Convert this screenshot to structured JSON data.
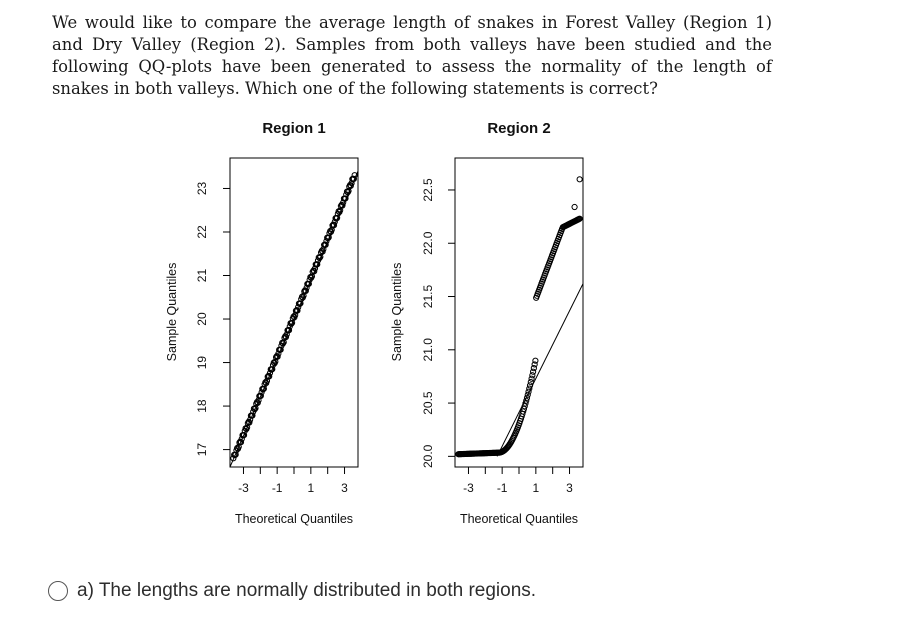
{
  "question": {
    "text": "We would like to compare the average length of snakes in Forest Valley (Region 1) and Dry Valley (Region 2). Samples from both valleys have been studied and the following QQ-plots have been generated to assess the normality of the length of snakes in both valleys. Which one of the following statements is correct?"
  },
  "chart_data": [
    {
      "type": "scatter",
      "title": "Region 1",
      "xlabel": "Theoretical Quantiles",
      "ylabel": "Sample Quantiles",
      "xlim": [
        -3.8,
        3.8
      ],
      "ylim": [
        16.6,
        23.7
      ],
      "xticks": [
        -3,
        -2,
        -1,
        0,
        1,
        2,
        3
      ],
      "xtick_labels": [
        "-3",
        "",
        "-1",
        "",
        "1",
        "",
        "3"
      ],
      "yticks": [
        17,
        18,
        19,
        20,
        21,
        22,
        23
      ],
      "ytick_labels": [
        "17",
        "18",
        "19",
        "20",
        "21",
        "22",
        "23"
      ],
      "reference_line": {
        "x": [
          -3.8,
          3.8
        ],
        "y": [
          16.6,
          23.4
        ]
      },
      "points": {
        "x_range": [
          -3.6,
          3.6
        ],
        "y_range": [
          16.8,
          23.3
        ],
        "pattern": "linear"
      }
    },
    {
      "type": "scatter",
      "title": "Region 2",
      "xlabel": "Theoretical Quantiles",
      "ylabel": "Sample Quantiles",
      "xlim": [
        -3.8,
        3.8
      ],
      "ylim": [
        19.9,
        22.8
      ],
      "xticks": [
        -3,
        -2,
        -1,
        0,
        1,
        2,
        3
      ],
      "xtick_labels": [
        "-3",
        "",
        "-1",
        "",
        "1",
        "",
        "3"
      ],
      "yticks": [
        20.0,
        20.5,
        21.0,
        21.5,
        22.0,
        22.5
      ],
      "ytick_labels": [
        "20.0",
        "20.5",
        "21.0",
        "21.5",
        "22.0",
        "22.5"
      ],
      "reference_line": {
        "x": [
          -1.3,
          3.8
        ],
        "y": [
          20.0,
          21.62
        ]
      },
      "points": {
        "x_range": [
          -3.6,
          3.6
        ],
        "y_range": [
          20.02,
          22.6
        ],
        "pattern": "right-skewed",
        "outliers": [
          {
            "x": 3.3,
            "y": 22.34
          },
          {
            "x": 3.6,
            "y": 22.6
          }
        ]
      }
    }
  ],
  "options": [
    {
      "label": "a) The lengths are normally distributed in both regions."
    }
  ]
}
